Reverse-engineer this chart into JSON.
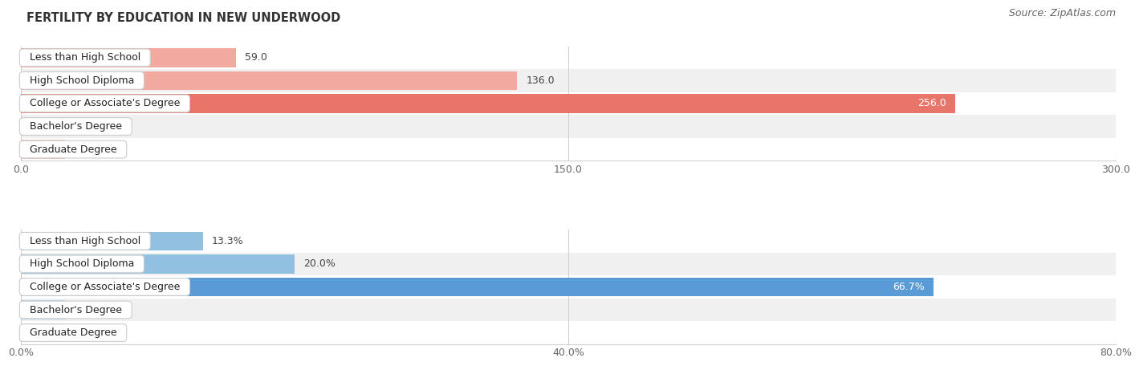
{
  "title": "FERTILITY BY EDUCATION IN NEW UNDERWOOD",
  "source": "Source: ZipAtlas.com",
  "top_section": {
    "categories": [
      "Less than High School",
      "High School Diploma",
      "College or Associate's Degree",
      "Bachelor's Degree",
      "Graduate Degree"
    ],
    "values": [
      59.0,
      136.0,
      256.0,
      0.0,
      0.0
    ],
    "bar_color_highlight": "#E8756A",
    "bar_color_normal": "#F2A99F",
    "bar_color_zero": "#F2B8B3",
    "highlight_index": 2,
    "xlim": [
      0,
      300
    ],
    "xticks": [
      0.0,
      150.0,
      300.0
    ],
    "xtick_labels": [
      "0.0",
      "150.0",
      "300.0"
    ]
  },
  "bottom_section": {
    "categories": [
      "Less than High School",
      "High School Diploma",
      "College or Associate's Degree",
      "Bachelor's Degree",
      "Graduate Degree"
    ],
    "values": [
      13.3,
      20.0,
      66.7,
      0.0,
      0.0
    ],
    "bar_color_highlight": "#5B9BD5",
    "bar_color_normal": "#92C0E0",
    "bar_color_zero": "#AACFE8",
    "highlight_index": 2,
    "xlim": [
      0,
      80
    ],
    "xticks": [
      0.0,
      40.0,
      80.0
    ],
    "xtick_labels": [
      "0.0%",
      "40.0%",
      "80.0%"
    ]
  },
  "label_fontsize": 9,
  "value_fontsize": 9,
  "title_fontsize": 10.5,
  "source_fontsize": 9,
  "bar_height": 0.82,
  "background_color": "#ffffff",
  "row_bg_even": "#ffffff",
  "row_bg_odd": "#f0f0f0",
  "tick_label_color": "#666666",
  "grid_color": "#d0d0d0",
  "label_box_facecolor": "white",
  "label_box_edgecolor": "#cccccc",
  "value_color_inside": "white",
  "value_color_outside": "#444444",
  "zero_bar_width": 12
}
